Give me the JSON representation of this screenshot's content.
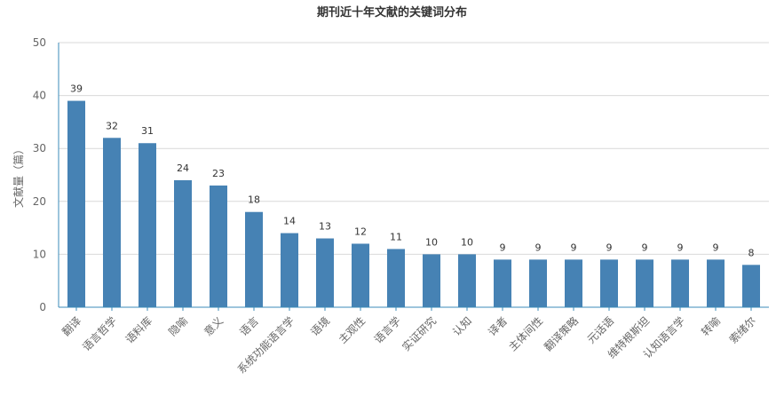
{
  "chart_data": {
    "type": "bar",
    "title": "期刊近十年文献的关键词分布",
    "xlabel": "",
    "ylabel": "文献量（篇）",
    "ylim": [
      0,
      50
    ],
    "yticks": [
      0,
      10,
      20,
      30,
      40,
      50
    ],
    "categories": [
      "翻译",
      "语言哲学",
      "语料库",
      "隐喻",
      "意义",
      "语言",
      "系统功能语言学",
      "语境",
      "主观性",
      "语言学",
      "实证研究",
      "认知",
      "译者",
      "主体间性",
      "翻译策略",
      "元话语",
      "维特根斯坦",
      "认知语言学",
      "转喻",
      "索绪尔"
    ],
    "values": [
      39,
      32,
      31,
      24,
      23,
      18,
      14,
      13,
      12,
      11,
      10,
      10,
      9,
      9,
      9,
      9,
      9,
      9,
      9,
      8
    ],
    "bar_color": "#4682b4",
    "grid": true
  }
}
